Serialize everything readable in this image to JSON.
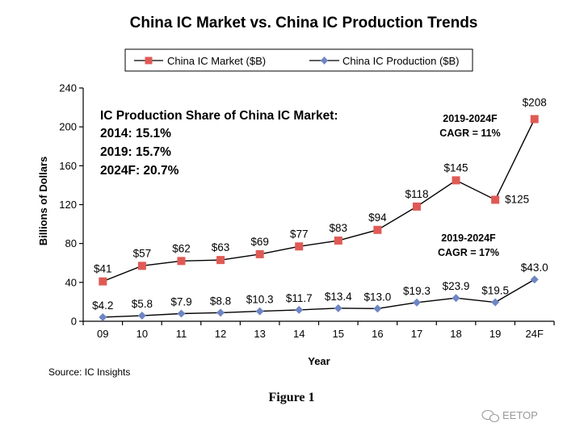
{
  "chart_data": {
    "type": "line",
    "title": "China IC Market vs. China IC Production Trends",
    "xlabel": "Year",
    "ylabel": "Billions of Dollars",
    "categories": [
      "09",
      "10",
      "11",
      "12",
      "13",
      "14",
      "15",
      "16",
      "17",
      "18",
      "19",
      "24F"
    ],
    "ylim": [
      0,
      240
    ],
    "yticks": [
      0,
      40,
      80,
      120,
      160,
      200,
      240
    ],
    "grid": false,
    "legend_position": "top",
    "series": [
      {
        "name": "China IC Market ($B)",
        "color": "#e05a55",
        "marker": "square",
        "values": [
          41,
          57,
          62,
          63,
          69,
          77,
          83,
          94,
          118,
          145,
          125,
          208
        ],
        "labels": [
          "$41",
          "$57",
          "$62",
          "$63",
          "$69",
          "$77",
          "$83",
          "$94",
          "$118",
          "$145",
          "$125",
          "$208"
        ]
      },
      {
        "name": "China IC Production ($B)",
        "color": "#6e86c4",
        "marker": "diamond",
        "values": [
          4.2,
          5.8,
          7.9,
          8.8,
          10.3,
          11.7,
          13.4,
          13.0,
          19.3,
          23.9,
          19.5,
          43.0
        ],
        "labels": [
          "$4.2",
          "$5.8",
          "$7.9",
          "$8.8",
          "$10.3",
          "$11.7",
          "$13.4",
          "$13.0",
          "$19.3",
          "$23.9",
          "$19.5",
          "$43.0"
        ]
      }
    ],
    "annotations": {
      "share_title": "IC Production Share of China IC Market:",
      "share_lines": [
        "2014: 15.1%",
        "2019: 15.7%",
        "2024F: 20.7%"
      ],
      "market_cagr": [
        "2019-2024F",
        "CAGR = 11%"
      ],
      "production_cagr": [
        "2019-2024F",
        "CAGR = 17%"
      ]
    }
  },
  "source": "Source: IC Insights",
  "caption": "Figure 1",
  "watermark": "EETOP",
  "watermark_icon": "wechat-icon"
}
